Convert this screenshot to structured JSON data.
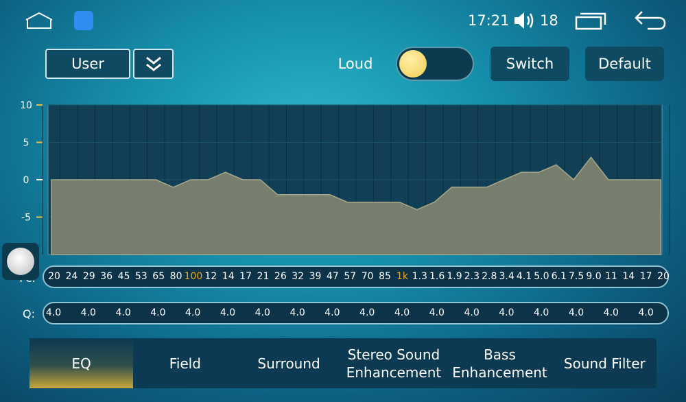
{
  "status": {
    "time": "17:21",
    "volume": "18"
  },
  "controls": {
    "preset": "User",
    "loud": "Loud",
    "switch": "Switch",
    "default": "Default"
  },
  "eq": {
    "type": "area",
    "ylim": [
      -10,
      10
    ],
    "yticks": [
      10,
      5,
      0,
      -5
    ],
    "fc_label": "Fc:",
    "q_label": "Q:",
    "frequencies": [
      "20",
      "24",
      "29",
      "36",
      "45",
      "53",
      "65",
      "80",
      "100",
      "12",
      "14",
      "17",
      "21",
      "26",
      "32",
      "39",
      "47",
      "57",
      "70",
      "85",
      "1k",
      "1.3",
      "1.6",
      "1.9",
      "2.3",
      "2.8",
      "3.4",
      "4.1",
      "5.0",
      "6.1",
      "7.5",
      "9.0",
      "11",
      "14",
      "17",
      "20"
    ],
    "highlighted": [
      8,
      20
    ],
    "highlight_color": "#f0a818",
    "values": [
      0,
      0,
      0,
      0,
      0,
      0,
      0,
      -1,
      0,
      0,
      1,
      0,
      0,
      -2,
      -2,
      -2,
      -2,
      -3,
      -3,
      -3,
      -3,
      -4,
      -3,
      -1,
      -1,
      -1,
      0,
      1,
      1,
      2,
      0,
      3,
      0,
      0,
      0,
      0
    ],
    "color": "#8a8a72",
    "q": [
      "4.0",
      "4.0",
      "4.0",
      "4.0",
      "4.0",
      "4.0",
      "4.0",
      "4.0",
      "4.0",
      "4.0",
      "4.0",
      "4.0",
      "4.0",
      "4.0",
      "4.0",
      "4.0",
      "4.0",
      "4.0"
    ]
  },
  "tabs": [
    "EQ",
    "Field",
    "Surround",
    "Stereo Sound Enhancement",
    "Bass Enhancement",
    "Sound Filter"
  ],
  "active_tab": 0
}
